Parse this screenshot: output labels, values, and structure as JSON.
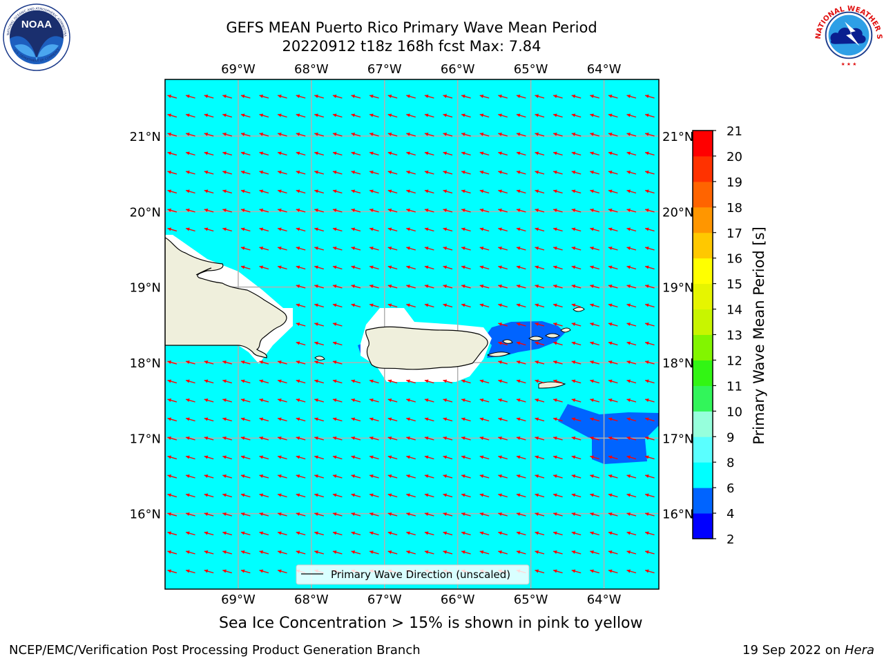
{
  "header": {
    "title_line1": "GEFS MEAN Puerto Rico Primary Wave Mean Period",
    "title_line2": "20220912 t18z 168h fcst   Max: 7.84"
  },
  "logos": {
    "left": {
      "text": "NOAA",
      "ring_top": "NATIONAL OCEANIC AND ATMOSPHERIC ADMINISTRATION",
      "ring_bottom": "U.S. DEPARTMENT OF COMMERCE"
    },
    "right": {
      "ring_text": "NATIONAL WEATHER SERVICE"
    }
  },
  "map": {
    "lon_ticks": [
      "69°W",
      "68°W",
      "67°W",
      "66°W",
      "65°W",
      "64°W"
    ],
    "lat_ticks": [
      "21°N",
      "20°N",
      "19°N",
      "18°N",
      "17°N",
      "16°N"
    ],
    "lon_values": [
      -69,
      -68,
      -67,
      -66,
      -65,
      -64
    ],
    "lat_values": [
      21,
      20,
      19,
      18,
      17,
      16
    ],
    "extent": {
      "lon_min": -70,
      "lon_max": -63.25,
      "lat_min": 15,
      "lat_max": 21.75
    },
    "ocean_color": "#00ffff",
    "land_color": "#efefdc",
    "arrow_color": "#ff0000",
    "legend_label": "Primary Wave Direction (unscaled)"
  },
  "colorbar": {
    "label": "Primary Wave Mean Period [s]",
    "ticks": [
      "2",
      "4",
      "6",
      "8",
      "9",
      "10",
      "11",
      "12",
      "13",
      "14",
      "15",
      "16",
      "17",
      "18",
      "19",
      "20",
      "21"
    ],
    "colors": [
      "#0000ff",
      "#0064ff",
      "#00ffff",
      "#5affff",
      "#96ffdc",
      "#32f55a",
      "#32f514",
      "#82f500",
      "#c8f500",
      "#e6f500",
      "#ffff00",
      "#ffc800",
      "#ff9600",
      "#ff6400",
      "#ff3200",
      "#ff0000"
    ]
  },
  "chart_data": {
    "type": "heatmap",
    "title": "GEFS MEAN Puerto Rico Primary Wave Mean Period",
    "subtitle": "20220912 t18z 168h fcst   Max: 7.84",
    "variable": "Primary Wave Mean Period",
    "units": "s",
    "max": 7.84,
    "dominant_value_range": [
      6,
      8
    ],
    "regions_4_to_6": [
      "Virgin Islands area east of Puerto Rico",
      "south-east corner near 17°N 64°W"
    ],
    "wave_direction": "toward west-northwest"
  },
  "captions": {
    "sea_ice": "Sea Ice Concentration > 15% is shown in pink to yellow",
    "footer_left": "NCEP/EMC/Verification Post Processing Product Generation Branch",
    "footer_date": "19 Sep 2022 on ",
    "footer_machine": "Hera"
  }
}
